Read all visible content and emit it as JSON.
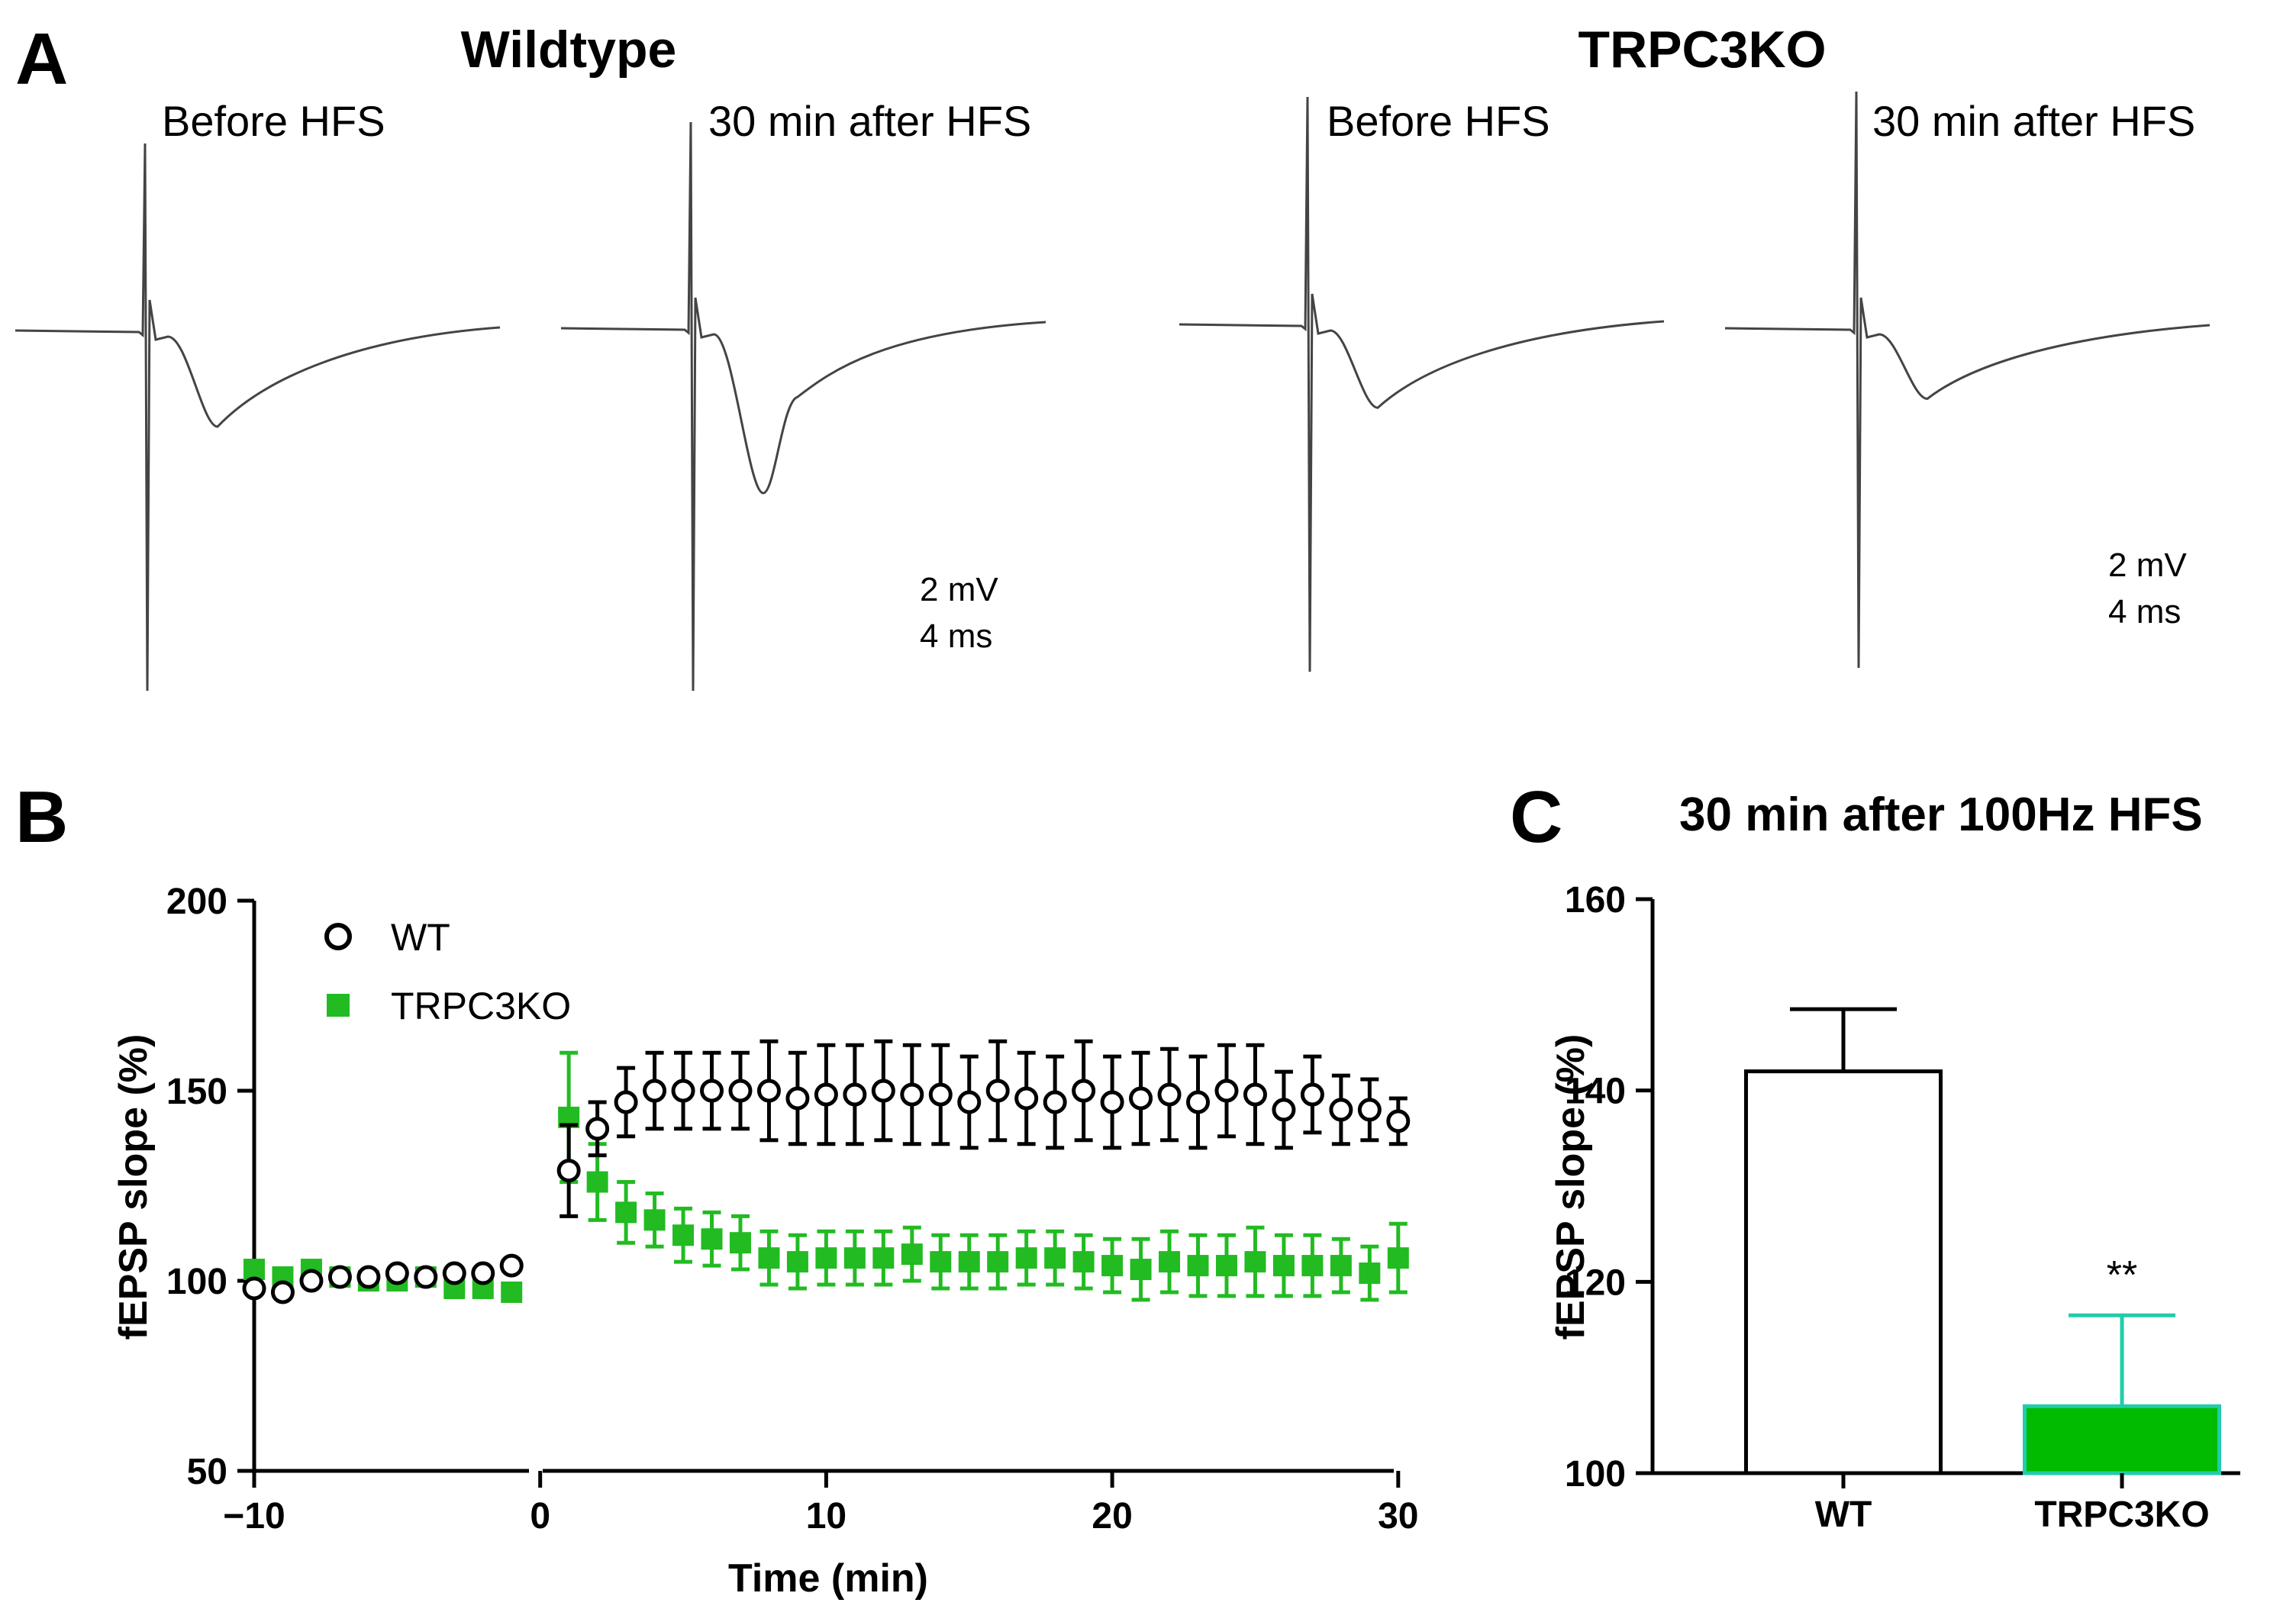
{
  "panel_a": {
    "letter": "A",
    "groups": [
      {
        "title": "Wildtype",
        "traces": [
          {
            "label": "Before HFS",
            "peak": 0.36
          },
          {
            "label": "30 min after HFS",
            "peak": 0.54
          }
        ]
      },
      {
        "title": "TRPC3KO",
        "traces": [
          {
            "label": "Before HFS",
            "peak": 0.26
          },
          {
            "label": "30 min after HFS",
            "peak": 0.22
          }
        ]
      }
    ],
    "scale_bars": [
      {
        "voltage": "2 mV",
        "time": "4 ms"
      },
      {
        "voltage": "2 mV",
        "time": "4 ms"
      }
    ]
  },
  "chart_data": [
    {
      "panel": "B",
      "type": "scatter",
      "title": "",
      "xlabel": "Time (min)",
      "ylabel": "fEPSP slope (%)",
      "xlim": [
        -10,
        30
      ],
      "ylim": [
        50,
        200
      ],
      "xticks": [
        -10,
        0,
        10,
        20,
        30
      ],
      "xtick_labels": [
        "−10",
        "0",
        "10",
        "20",
        "30"
      ],
      "yticks": [
        50,
        100,
        150,
        200
      ],
      "ytick_labels": [
        "50",
        "100",
        "150",
        "200"
      ],
      "legend_position": "top-left",
      "series": [
        {
          "name": "WT",
          "marker": "open-circle",
          "color": "#000000",
          "x": [
            -10,
            -9,
            -8,
            -7,
            -6,
            -5,
            -4,
            -3,
            -2,
            -1,
            1,
            2,
            3,
            4,
            5,
            6,
            7,
            8,
            9,
            10,
            11,
            12,
            13,
            14,
            15,
            16,
            17,
            18,
            19,
            20,
            21,
            22,
            23,
            24,
            25,
            26,
            27,
            28,
            29,
            30
          ],
          "y": [
            98,
            97,
            100,
            101,
            101,
            102,
            101,
            102,
            102,
            104,
            129,
            140,
            147,
            150,
            150,
            150,
            150,
            150,
            148,
            149,
            149,
            150,
            149,
            149,
            147,
            150,
            148,
            147,
            150,
            147,
            148,
            149,
            147,
            150,
            149,
            145,
            149,
            145,
            145,
            142
          ],
          "err": [
            0,
            0,
            0,
            0,
            0,
            0,
            0,
            0,
            0,
            0,
            12,
            7,
            9,
            10,
            10,
            10,
            10,
            13,
            12,
            13,
            13,
            13,
            13,
            13,
            12,
            13,
            12,
            12,
            13,
            12,
            12,
            12,
            12,
            12,
            13,
            10,
            10,
            9,
            8,
            6
          ]
        },
        {
          "name": "TRPC3KO",
          "marker": "filled-square",
          "color": "#22bb22",
          "x": [
            -10,
            -9,
            -8,
            -7,
            -6,
            -5,
            -4,
            -3,
            -2,
            -1,
            1,
            2,
            3,
            4,
            5,
            6,
            7,
            8,
            9,
            10,
            11,
            12,
            13,
            14,
            15,
            16,
            17,
            18,
            19,
            20,
            21,
            22,
            23,
            24,
            25,
            26,
            27,
            28,
            29,
            30
          ],
          "y": [
            103,
            101,
            103,
            101,
            100,
            100,
            101,
            98,
            98,
            97,
            143,
            126,
            118,
            116,
            112,
            111,
            110,
            106,
            105,
            106,
            106,
            106,
            107,
            105,
            105,
            105,
            106,
            106,
            105,
            104,
            103,
            105,
            104,
            104,
            105,
            104,
            104,
            104,
            102,
            106
          ],
          "err": [
            0,
            0,
            0,
            0,
            0,
            0,
            0,
            0,
            0,
            0,
            17,
            10,
            8,
            7,
            7,
            7,
            7,
            7,
            7,
            7,
            7,
            7,
            7,
            7,
            7,
            7,
            7,
            7,
            7,
            7,
            8,
            8,
            8,
            8,
            9,
            8,
            8,
            7,
            7,
            9
          ]
        }
      ],
      "time_axis_gap": 0.5
    },
    {
      "panel": "C",
      "type": "bar",
      "title": "30 min after 100Hz HFS",
      "xlabel": "",
      "ylabel": "fEPSP slope (%)",
      "ylim": [
        100,
        160
      ],
      "yticks": [
        100,
        120,
        140,
        160
      ],
      "categories": [
        "WT",
        "TRPC3KO"
      ],
      "values": [
        142,
        107
      ],
      "errors": [
        6.5,
        9.5
      ],
      "colors": [
        "#ffffff",
        "#00bb00"
      ],
      "edge_colors": [
        "#000000",
        "#22ccaa"
      ],
      "annotations": [
        {
          "category": "TRPC3KO",
          "text": "**"
        }
      ]
    }
  ]
}
